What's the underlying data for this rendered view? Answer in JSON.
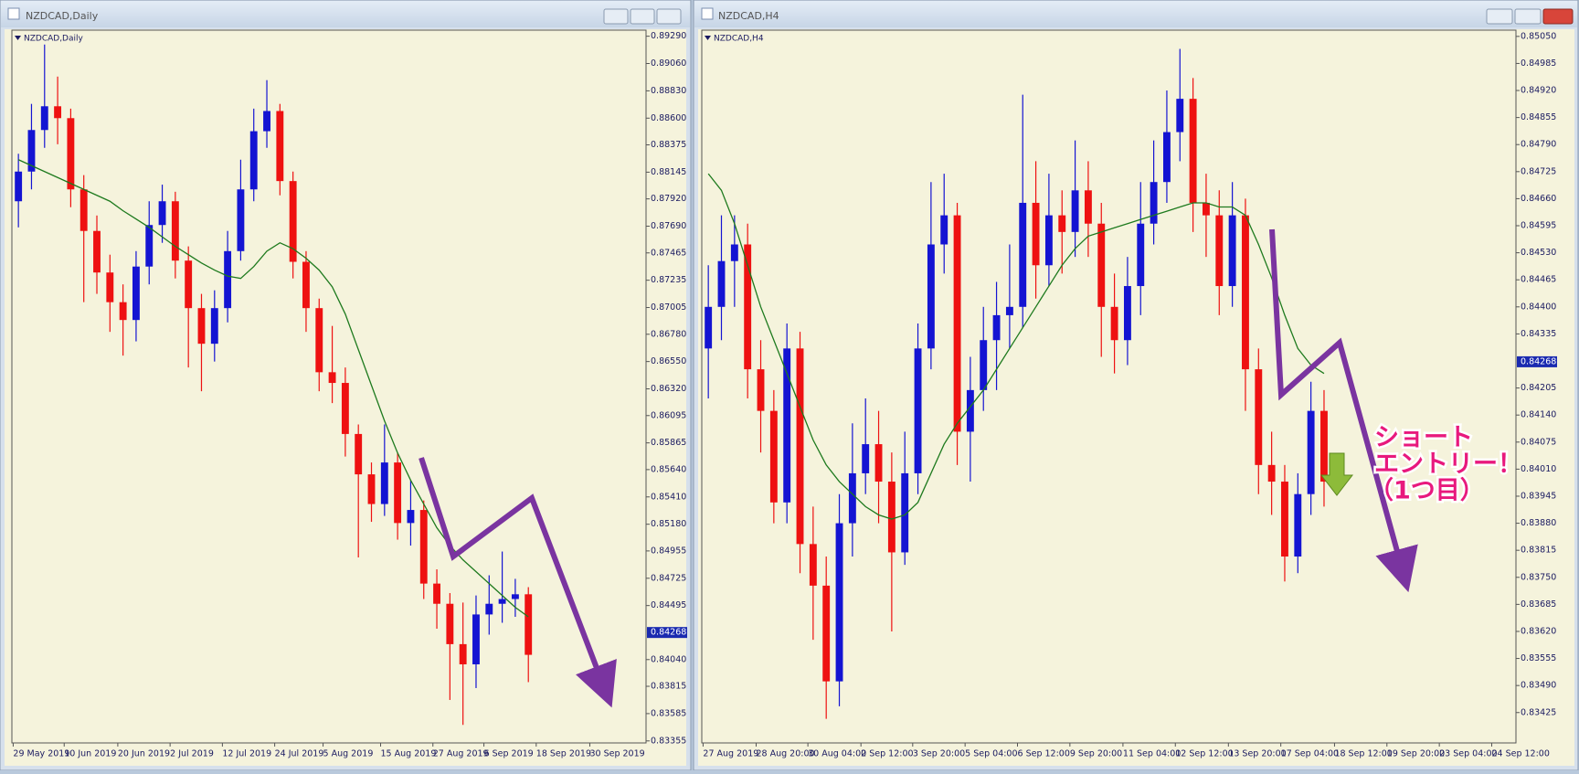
{
  "windows": [
    {
      "title": "NZDCAD,Daily"
    },
    {
      "title": "NZDCAD,H4"
    }
  ],
  "annotation": {
    "lines": [
      "ショート",
      "エントリー！",
      "（1つ目）"
    ]
  },
  "chart_data": [
    {
      "type": "candlestick",
      "title": "NZDCAD,Daily",
      "background": "#f5f3dc",
      "up_color": "#1414d2",
      "down_color": "#ee1111",
      "xlim": [
        -0.5,
        48
      ],
      "xticks": [
        {
          "value": -0.4,
          "label": "29 May 2019"
        },
        {
          "value": 3.5,
          "label": "10 Jun 2019"
        },
        {
          "value": 7.6,
          "label": "20 Jun 2019"
        },
        {
          "value": 11.6,
          "label": "2 Jul 2019"
        },
        {
          "value": 15.6,
          "label": "12 Jul 2019"
        },
        {
          "value": 19.6,
          "label": "24 Jul 2019"
        },
        {
          "value": 23.3,
          "label": "5 Aug 2019"
        },
        {
          "value": 27.7,
          "label": "15 Aug 2019"
        },
        {
          "value": 31.7,
          "label": "27 Aug 2019"
        },
        {
          "value": 35.6,
          "label": "6 Sep 2019"
        },
        {
          "value": 39.6,
          "label": "18 Sep 2019"
        },
        {
          "value": 43.7,
          "label": "30 Sep 2019"
        }
      ],
      "ylim": [
        0.83338,
        0.89341
      ],
      "yticks": [
        {
          "value": 0.8929,
          "label": "0.89290"
        },
        {
          "value": 0.8906,
          "label": "0.89060"
        },
        {
          "value": 0.8883,
          "label": "0.88830"
        },
        {
          "value": 0.886,
          "label": "0.88600"
        },
        {
          "value": 0.88375,
          "label": "0.88375"
        },
        {
          "value": 0.88145,
          "label": "0.88145"
        },
        {
          "value": 0.8792,
          "label": "0.87920"
        },
        {
          "value": 0.8769,
          "label": "0.87690"
        },
        {
          "value": 0.87465,
          "label": "0.87465"
        },
        {
          "value": 0.87235,
          "label": "0.87235"
        },
        {
          "value": 0.87005,
          "label": "0.87005"
        },
        {
          "value": 0.8678,
          "label": "0.86780"
        },
        {
          "value": 0.8655,
          "label": "0.86550"
        },
        {
          "value": 0.8632,
          "label": "0.86320"
        },
        {
          "value": 0.86095,
          "label": "0.86095"
        },
        {
          "value": 0.85865,
          "label": "0.85865"
        },
        {
          "value": 0.8564,
          "label": "0.85640"
        },
        {
          "value": 0.8541,
          "label": "0.85410"
        },
        {
          "value": 0.8518,
          "label": "0.85180"
        },
        {
          "value": 0.84955,
          "label": "0.84955"
        },
        {
          "value": 0.84725,
          "label": "0.84725"
        },
        {
          "value": 0.84495,
          "label": "0.84495"
        },
        {
          "value": 0.8404,
          "label": "0.84040"
        },
        {
          "value": 0.83815,
          "label": "0.83815"
        },
        {
          "value": 0.83585,
          "label": "0.83585"
        },
        {
          "value": 0.83355,
          "label": "0.83355"
        }
      ],
      "current_price": 0.84268,
      "open": [
        0.879,
        0.8815,
        0.885,
        0.887,
        0.886,
        0.88,
        0.8765,
        0.873,
        0.8705,
        0.869,
        0.8735,
        0.877,
        0.879,
        0.874,
        0.87,
        0.867,
        0.87,
        0.8748,
        0.88,
        0.8849,
        0.8866,
        0.8807,
        0.8739,
        0.87,
        0.8646,
        0.8637,
        0.8594,
        0.856,
        0.8535,
        0.857,
        0.8519,
        0.853,
        0.8468,
        0.8451,
        0.8417,
        0.84,
        0.8442,
        0.8451,
        0.8455,
        0.8459
      ],
      "high": [
        0.883,
        0.8872,
        0.8922,
        0.8895,
        0.8868,
        0.8812,
        0.8778,
        0.8745,
        0.872,
        0.8748,
        0.879,
        0.8804,
        0.8798,
        0.8752,
        0.8712,
        0.8715,
        0.8765,
        0.8825,
        0.8868,
        0.8892,
        0.8872,
        0.8815,
        0.8748,
        0.8708,
        0.8685,
        0.865,
        0.8602,
        0.857,
        0.8602,
        0.8578,
        0.8555,
        0.8538,
        0.848,
        0.846,
        0.8452,
        0.8458,
        0.8475,
        0.8495,
        0.8472,
        0.8465
      ],
      "low": [
        0.8768,
        0.88,
        0.8835,
        0.8838,
        0.8785,
        0.8705,
        0.8712,
        0.868,
        0.866,
        0.8672,
        0.872,
        0.8755,
        0.8725,
        0.865,
        0.863,
        0.8655,
        0.8688,
        0.874,
        0.879,
        0.8835,
        0.8795,
        0.8725,
        0.868,
        0.863,
        0.862,
        0.8575,
        0.849,
        0.852,
        0.8525,
        0.8505,
        0.85,
        0.8455,
        0.843,
        0.837,
        0.8349,
        0.838,
        0.8425,
        0.8435,
        0.844,
        0.8385
      ],
      "close": [
        0.8815,
        0.885,
        0.887,
        0.886,
        0.88,
        0.8765,
        0.873,
        0.8705,
        0.869,
        0.8735,
        0.877,
        0.879,
        0.874,
        0.87,
        0.867,
        0.87,
        0.8748,
        0.88,
        0.8849,
        0.8866,
        0.8807,
        0.8739,
        0.87,
        0.8646,
        0.8637,
        0.8594,
        0.856,
        0.8535,
        0.857,
        0.8519,
        0.853,
        0.8468,
        0.8451,
        0.8417,
        0.84,
        0.8442,
        0.8451,
        0.8455,
        0.8459,
        0.8408
      ],
      "ma": {
        "color": "#1e7a1e",
        "values": [
          0.8825,
          0.882,
          0.8815,
          0.881,
          0.8805,
          0.88,
          0.8795,
          0.879,
          0.8782,
          0.8775,
          0.8768,
          0.876,
          0.8752,
          0.8745,
          0.8738,
          0.8732,
          0.8727,
          0.8725,
          0.8735,
          0.8748,
          0.8755,
          0.875,
          0.8742,
          0.8732,
          0.8718,
          0.8695,
          0.8665,
          0.8635,
          0.8605,
          0.8578,
          0.8555,
          0.8535,
          0.8515,
          0.85,
          0.8488,
          0.8478,
          0.8468,
          0.8458,
          0.8448,
          0.844
        ]
      }
    },
    {
      "type": "candlestick",
      "title": "NZDCAD,H4",
      "background": "#f5f3dc",
      "up_color": "#1414d2",
      "down_color": "#ee1111",
      "xlim": [
        -0.5,
        61.65
      ],
      "xticks": [
        {
          "value": -0.4,
          "label": "27 Aug 2019"
        },
        {
          "value": 3.65,
          "label": "28 Aug 20:00"
        },
        {
          "value": 7.6,
          "label": "30 Aug 04:00"
        },
        {
          "value": 11.65,
          "label": "2 Sep 12:00"
        },
        {
          "value": 15.6,
          "label": "3 Sep 20:00"
        },
        {
          "value": 19.6,
          "label": "5 Sep 04:00"
        },
        {
          "value": 23.6,
          "label": "6 Sep 12:00"
        },
        {
          "value": 27.6,
          "label": "9 Sep 20:00"
        },
        {
          "value": 31.65,
          "label": "11 Sep 04:00"
        },
        {
          "value": 35.65,
          "label": "12 Sep 12:00"
        },
        {
          "value": 39.7,
          "label": "13 Sep 20:00"
        },
        {
          "value": 43.7,
          "label": "17 Sep 04:00"
        },
        {
          "value": 47.8,
          "label": "18 Sep 12:00"
        },
        {
          "value": 51.8,
          "label": "19 Sep 20:00"
        },
        {
          "value": 55.8,
          "label": "23 Sep 04:00"
        },
        {
          "value": 59.8,
          "label": "24 Sep 12:00"
        }
      ],
      "ylim": [
        0.83352,
        0.85065
      ],
      "yticks": [
        {
          "value": 0.8505,
          "label": "0.85050"
        },
        {
          "value": 0.84985,
          "label": "0.84985"
        },
        {
          "value": 0.8492,
          "label": "0.84920"
        },
        {
          "value": 0.84855,
          "label": "0.84855"
        },
        {
          "value": 0.8479,
          "label": "0.84790"
        },
        {
          "value": 0.84725,
          "label": "0.84725"
        },
        {
          "value": 0.8466,
          "label": "0.84660"
        },
        {
          "value": 0.84595,
          "label": "0.84595"
        },
        {
          "value": 0.8453,
          "label": "0.84530"
        },
        {
          "value": 0.84465,
          "label": "0.84465"
        },
        {
          "value": 0.844,
          "label": "0.84400"
        },
        {
          "value": 0.84335,
          "label": "0.84335"
        },
        {
          "value": 0.84205,
          "label": "0.84205"
        },
        {
          "value": 0.8414,
          "label": "0.84140"
        },
        {
          "value": 0.84075,
          "label": "0.84075"
        },
        {
          "value": 0.8401,
          "label": "0.84010"
        },
        {
          "value": 0.83945,
          "label": "0.83945"
        },
        {
          "value": 0.8388,
          "label": "0.83880"
        },
        {
          "value": 0.83815,
          "label": "0.83815"
        },
        {
          "value": 0.8375,
          "label": "0.83750"
        },
        {
          "value": 0.83685,
          "label": "0.83685"
        },
        {
          "value": 0.8362,
          "label": "0.83620"
        },
        {
          "value": 0.83555,
          "label": "0.83555"
        },
        {
          "value": 0.8349,
          "label": "0.83490"
        },
        {
          "value": 0.83425,
          "label": "0.83425"
        }
      ],
      "current_price": 0.84268,
      "open": [
        0.843,
        0.844,
        0.8451,
        0.8455,
        0.8425,
        0.8415,
        0.8393,
        0.843,
        0.8383,
        0.8373,
        0.835,
        0.8388,
        0.84,
        0.8407,
        0.8398,
        0.8381,
        0.84,
        0.843,
        0.8455,
        0.8462,
        0.841,
        0.842,
        0.8432,
        0.8438,
        0.844,
        0.8465,
        0.845,
        0.8462,
        0.8458,
        0.8468,
        0.846,
        0.844,
        0.8432,
        0.8445,
        0.846,
        0.847,
        0.8482,
        0.849,
        0.8465,
        0.8462,
        0.8445,
        0.8462,
        0.8425,
        0.8402,
        0.8398,
        0.838,
        0.8395,
        0.8415
      ],
      "high": [
        0.845,
        0.8462,
        0.8462,
        0.846,
        0.8432,
        0.842,
        0.8436,
        0.8434,
        0.8392,
        0.838,
        0.8395,
        0.8412,
        0.8418,
        0.8415,
        0.8405,
        0.841,
        0.8436,
        0.847,
        0.8472,
        0.8465,
        0.8428,
        0.844,
        0.8446,
        0.8455,
        0.8491,
        0.8475,
        0.8472,
        0.8468,
        0.848,
        0.8475,
        0.8465,
        0.8448,
        0.8452,
        0.847,
        0.848,
        0.8492,
        0.8502,
        0.8495,
        0.8472,
        0.8468,
        0.847,
        0.8466,
        0.843,
        0.841,
        0.8402,
        0.84,
        0.8422,
        0.842
      ],
      "low": [
        0.8418,
        0.8432,
        0.844,
        0.8418,
        0.8405,
        0.8388,
        0.8388,
        0.8376,
        0.836,
        0.8341,
        0.8344,
        0.838,
        0.8395,
        0.8388,
        0.8362,
        0.8378,
        0.8395,
        0.8425,
        0.8448,
        0.8402,
        0.8398,
        0.8415,
        0.842,
        0.843,
        0.8435,
        0.8442,
        0.8445,
        0.8448,
        0.8452,
        0.8452,
        0.8428,
        0.8424,
        0.8426,
        0.8438,
        0.8455,
        0.8465,
        0.8475,
        0.8458,
        0.8452,
        0.8438,
        0.844,
        0.8415,
        0.8395,
        0.839,
        0.8374,
        0.8376,
        0.839,
        0.8392
      ],
      "close": [
        0.844,
        0.8451,
        0.8455,
        0.8425,
        0.8415,
        0.8393,
        0.843,
        0.8383,
        0.8373,
        0.835,
        0.8388,
        0.84,
        0.8407,
        0.8398,
        0.8381,
        0.84,
        0.843,
        0.8455,
        0.8462,
        0.841,
        0.842,
        0.8432,
        0.8438,
        0.844,
        0.8465,
        0.845,
        0.8462,
        0.8458,
        0.8468,
        0.846,
        0.844,
        0.8432,
        0.8445,
        0.846,
        0.847,
        0.8482,
        0.849,
        0.8465,
        0.8462,
        0.8445,
        0.8462,
        0.8425,
        0.8402,
        0.8398,
        0.838,
        0.8395,
        0.8415,
        0.8398
      ],
      "ma": {
        "color": "#1e7a1e",
        "values": [
          0.8472,
          0.8468,
          0.846,
          0.845,
          0.844,
          0.8432,
          0.8424,
          0.8416,
          0.8408,
          0.8402,
          0.8398,
          0.8395,
          0.8392,
          0.839,
          0.8389,
          0.839,
          0.8393,
          0.84,
          0.8407,
          0.8412,
          0.8416,
          0.842,
          0.8425,
          0.843,
          0.8435,
          0.844,
          0.8445,
          0.845,
          0.8454,
          0.8457,
          0.8458,
          0.8459,
          0.846,
          0.8461,
          0.8462,
          0.8463,
          0.8464,
          0.8465,
          0.8465,
          0.8464,
          0.8464,
          0.8462,
          0.8455,
          0.8447,
          0.8438,
          0.843,
          0.8426,
          0.8424
        ]
      }
    }
  ]
}
